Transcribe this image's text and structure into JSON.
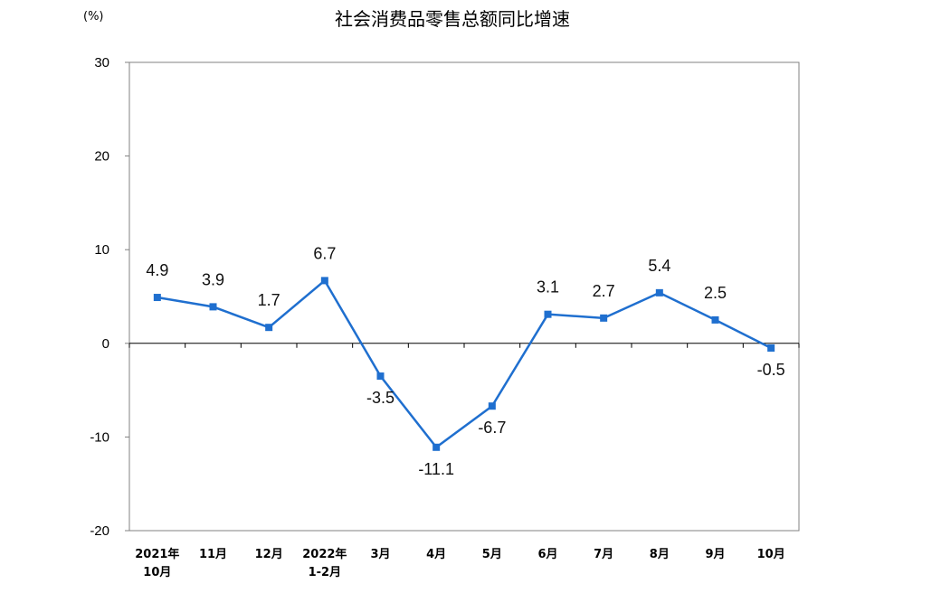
{
  "chart_data": {
    "type": "line",
    "title": "社会消费品零售总额同比增速",
    "ylabel": "(%)",
    "ylim": [
      -20,
      30
    ],
    "yticks": [
      "30",
      "20",
      "10",
      "0",
      "-10",
      "-20"
    ],
    "categories": [
      [
        "2021年",
        "10月"
      ],
      [
        "11月"
      ],
      [
        "12月"
      ],
      [
        "2022年",
        "1-2月"
      ],
      [
        "3月"
      ],
      [
        "4月"
      ],
      [
        "5月"
      ],
      [
        "6月"
      ],
      [
        "7月"
      ],
      [
        "8月"
      ],
      [
        "9月"
      ],
      [
        "10月"
      ]
    ],
    "series": [
      {
        "values": [
          4.9,
          3.9,
          1.7,
          6.7,
          -3.5,
          -11.1,
          -6.7,
          3.1,
          2.7,
          5.4,
          2.5,
          -0.5
        ],
        "labels": [
          "4.9",
          "3.9",
          "1.7",
          "6.7",
          "-3.5",
          "-11.1",
          "-6.7",
          "3.1",
          "2.7",
          "5.4",
          "2.5",
          "-0.5"
        ],
        "color": "#1f6fcf"
      }
    ],
    "grid": false,
    "legend": "none"
  }
}
